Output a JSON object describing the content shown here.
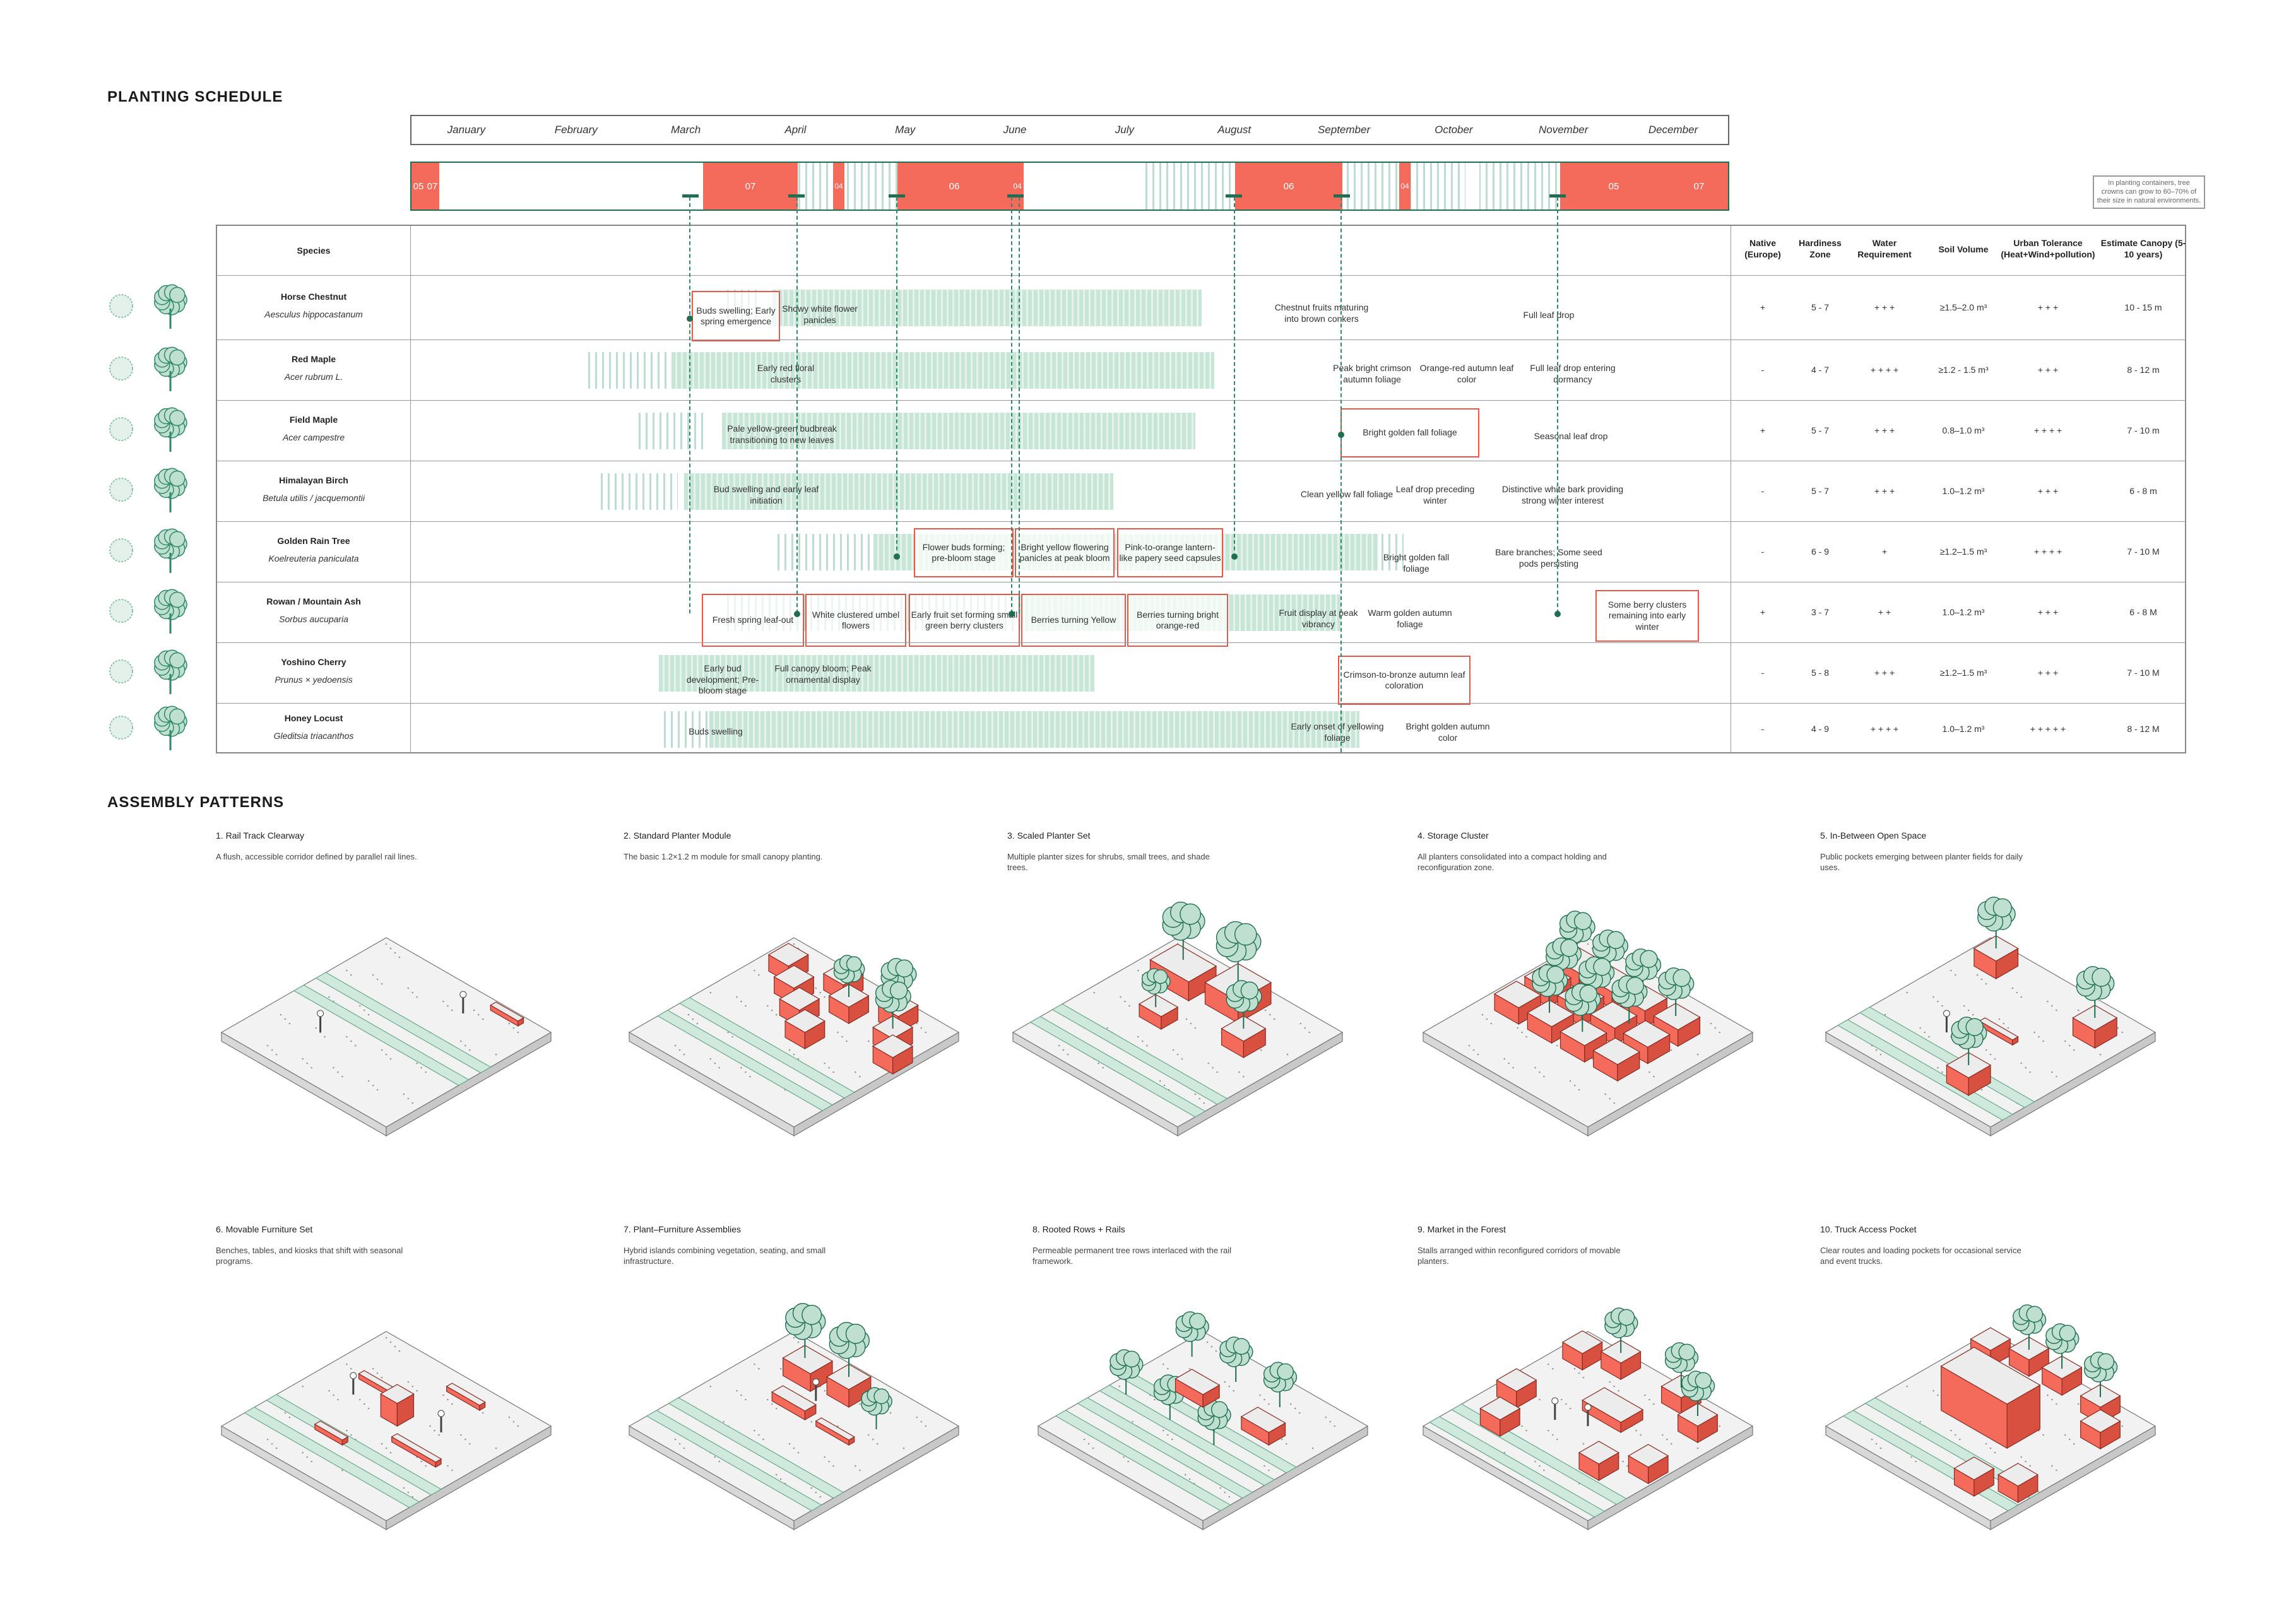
{
  "headings": {
    "schedule": "PLANTING SCHEDULE",
    "assembly": "ASSEMBLY PATTERNS"
  },
  "months": [
    "January",
    "February",
    "March",
    "April",
    "May",
    "June",
    "July",
    "August",
    "September",
    "October",
    "November",
    "December"
  ],
  "temperature_labels": [
    "05",
    "07",
    "07",
    "04",
    "06",
    "04",
    "06",
    "04",
    "05",
    "07"
  ],
  "table_headers": {
    "species": "Species",
    "native": "Native (Europe)",
    "hardiness": "Hardiness Zone",
    "water": "Water Requirement",
    "soil": "Soil Volume",
    "tolerance": "Urban Tolerance (Heat+Wind+pollution)",
    "canopy": "Estimate Canopy (5-10 years)"
  },
  "canopy_note": "In planting containers, tree crowns can grow to 60–70% of their size in natural environments.",
  "species": [
    {
      "name": "Horse Chestnut",
      "latin": "Aesculus hippocastanum",
      "native": "+",
      "hardiness": "5 - 7",
      "water": "+ + +",
      "soil": "≥1.5–2.0 m³",
      "tolerance": "+ + +",
      "canopy": "10 - 15 m",
      "notes": [
        "Buds swelling; Early spring emergence",
        "Showy white flower panicles",
        "Chestnut fruits maturing into brown conkers",
        "Full leaf drop"
      ]
    },
    {
      "name": "Red Maple",
      "latin": "Acer rubrum L.",
      "native": "-",
      "hardiness": "4 - 7",
      "water": "+ + + +",
      "soil": "≥1.2 - 1.5 m³",
      "tolerance": "+ + +",
      "canopy": "8 - 12 m",
      "notes": [
        "Early red floral clusters",
        "Peak bright crimson autumn foliage",
        "Orange-red autumn leaf color",
        "Full leaf drop entering dormancy"
      ]
    },
    {
      "name": "Field Maple",
      "latin": "Acer campestre",
      "native": "+",
      "hardiness": "5 - 7",
      "water": "+ + +",
      "soil": "0.8–1.0 m³",
      "tolerance": "+ + + +",
      "canopy": "7 - 10 m",
      "notes": [
        "Pale yellow-green budbreak transitioning to new leaves",
        "Bright golden fall foliage",
        "Seasonal leaf drop"
      ]
    },
    {
      "name": "Himalayan Birch",
      "latin": "Betula utilis / jacquemontii",
      "native": "-",
      "hardiness": "5 - 7",
      "water": "+ + +",
      "soil": "1.0–1.2 m³",
      "tolerance": "+ + +",
      "canopy": "6 - 8 m",
      "notes": [
        "Bud swelling and early leaf initiation",
        "Clean yellow fall foliage",
        "Leaf drop preceding winter",
        "Distinctive white bark providing strong winter interest"
      ]
    },
    {
      "name": "Golden Rain Tree",
      "latin": "Koelreuteria paniculata",
      "native": "-",
      "hardiness": "6 - 9",
      "water": "+",
      "soil": "≥1.2–1.5 m³",
      "tolerance": "+ + + +",
      "canopy": "7 - 10 M",
      "notes": [
        "Flower buds forming; pre-bloom stage",
        "Bright yellow flowering panicles at peak bloom",
        "Pink-to-orange lantern-like papery seed capsules",
        "Bright golden fall foliage",
        "Bare branches; Some seed pods persisting"
      ]
    },
    {
      "name": "Rowan / Mountain Ash",
      "latin": "Sorbus aucuparia",
      "native": "+",
      "hardiness": "3 - 7",
      "water": "+ +",
      "soil": "1.0–1.2 m³",
      "tolerance": "+ + +",
      "canopy": "6 - 8 M",
      "notes": [
        "Fresh spring leaf-out",
        "White clustered umbel flowers",
        "Early fruit set forming small green berry clusters",
        "Berries turning Yellow",
        "Berries turning bright orange-red",
        "Fruit display at peak vibrancy",
        "Warm golden autumn foliage",
        "Some berry clusters remaining into early winter"
      ]
    },
    {
      "name": "Yoshino Cherry",
      "latin": "Prunus × yedoensis",
      "native": "-",
      "hardiness": "5 - 8",
      "water": "+ + +",
      "soil": "≥1.2–1.5 m³",
      "tolerance": "+ + +",
      "canopy": "7 - 10 M",
      "notes": [
        "Early bud development; Pre-bloom stage",
        "Full canopy bloom; Peak ornamental display",
        "Crimson-to-bronze autumn leaf coloration"
      ]
    },
    {
      "name": "Honey Locust",
      "latin": "Gleditsia triacanthos",
      "native": "-",
      "hardiness": "4 - 9",
      "water": "+ + + +",
      "soil": "1.0–1.2 m³",
      "tolerance": "+ + + + +",
      "canopy": "8 - 12 M",
      "notes": [
        "Buds swelling",
        "Early onset of yellowing foliage",
        "Bright golden autumn color"
      ]
    }
  ],
  "patterns": [
    {
      "title": "1. Rail Track Clearway",
      "desc": "A flush, accessible corridor defined by parallel rail lines."
    },
    {
      "title": "2. Standard Planter Module",
      "desc": "The basic 1.2×1.2 m module for small canopy planting."
    },
    {
      "title": "3. Scaled Planter Set",
      "desc": "Multiple planter sizes for shrubs, small trees, and shade trees."
    },
    {
      "title": "4. Storage Cluster",
      "desc": "All planters consolidated into a compact holding and reconfiguration zone."
    },
    {
      "title": "5. In-Between Open Space",
      "desc": "Public pockets emerging between planter fields for daily uses."
    },
    {
      "title": "6. Movable Furniture Set",
      "desc": "Benches, tables, and kiosks that shift with seasonal programs."
    },
    {
      "title": "7. Plant–Furniture Assemblies",
      "desc": "Hybrid islands combining vegetation, seating, and small infrastructure."
    },
    {
      "title": "8. Rooted Rows + Rails",
      "desc": "Permeable permanent tree rows interlaced with the rail framework."
    },
    {
      "title": "9. Market in the Forest",
      "desc": "Stalls arranged within reconfigured corridors of movable planters."
    },
    {
      "title": "10. Truck Access Pocket",
      "desc": "Clear routes and loading pockets for occasional service and event trucks."
    }
  ],
  "colors": {
    "accent": "#f46b5b",
    "green": "#1f6e52",
    "light_green": "#c8e6d8"
  }
}
